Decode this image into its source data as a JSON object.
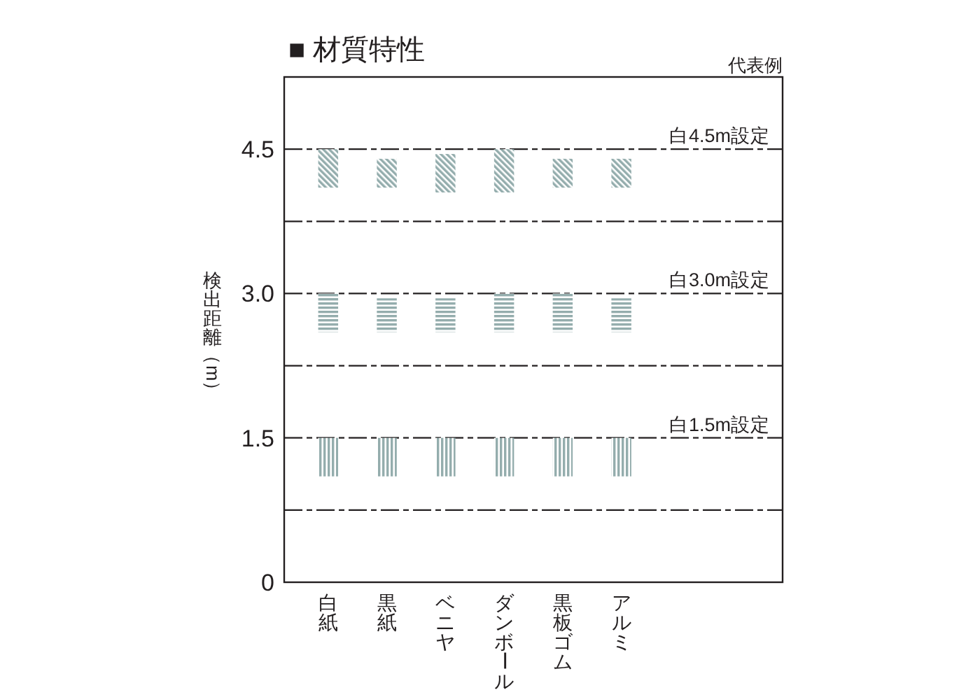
{
  "chart_data": {
    "type": "bar",
    "title": "■ 材質特性",
    "ylabel": "検出距離（m）",
    "annotations": [
      "代表例"
    ],
    "categories": [
      "白紙",
      "黒紙",
      "ベニヤ",
      "ダンボール",
      "黒板ゴム",
      "アルミ"
    ],
    "series": [
      {
        "color": "#94adad",
        "base": [
          4.1,
          4.1,
          4.05,
          4.05,
          4.1,
          4.1
        ],
        "values": [
          0.4,
          0.3,
          0.4,
          0.45,
          0.3,
          0.3
        ]
      },
      {
        "color": "#94adad",
        "base": [
          2.6,
          2.6,
          2.6,
          2.6,
          2.6,
          2.6
        ],
        "values": [
          0.4,
          0.35,
          0.35,
          0.4,
          0.4,
          0.35
        ]
      },
      {
        "color": "#94adad",
        "base": [
          1.1,
          1.1,
          1.1,
          1.1,
          1.1,
          1.1
        ],
        "values": [
          0.4,
          0.4,
          0.4,
          0.4,
          0.4,
          0.4
        ]
      }
    ],
    "ylim": [
      0,
      5.25
    ],
    "yticks": [
      0,
      1.5,
      {
        "value": 3,
        "label": "3.0"
      },
      4.5
    ],
    "ref_lines": [
      {
        "axis": "y",
        "value": 0.75,
        "line_style": "dashed"
      },
      {
        "axis": "y",
        "value": 1.5,
        "label": "白1.5m設定",
        "line_style": "dashed"
      },
      {
        "axis": "y",
        "value": 2.25,
        "line_style": "dashed"
      },
      {
        "axis": "y",
        "value": 3,
        "label": "白3.0m設定",
        "line_style": "dashed"
      },
      {
        "axis": "y",
        "value": 3.75,
        "line_style": "dashed"
      },
      {
        "axis": "y",
        "value": 4.5,
        "label": "白4.5m設定",
        "line_style": "dashed"
      }
    ]
  }
}
